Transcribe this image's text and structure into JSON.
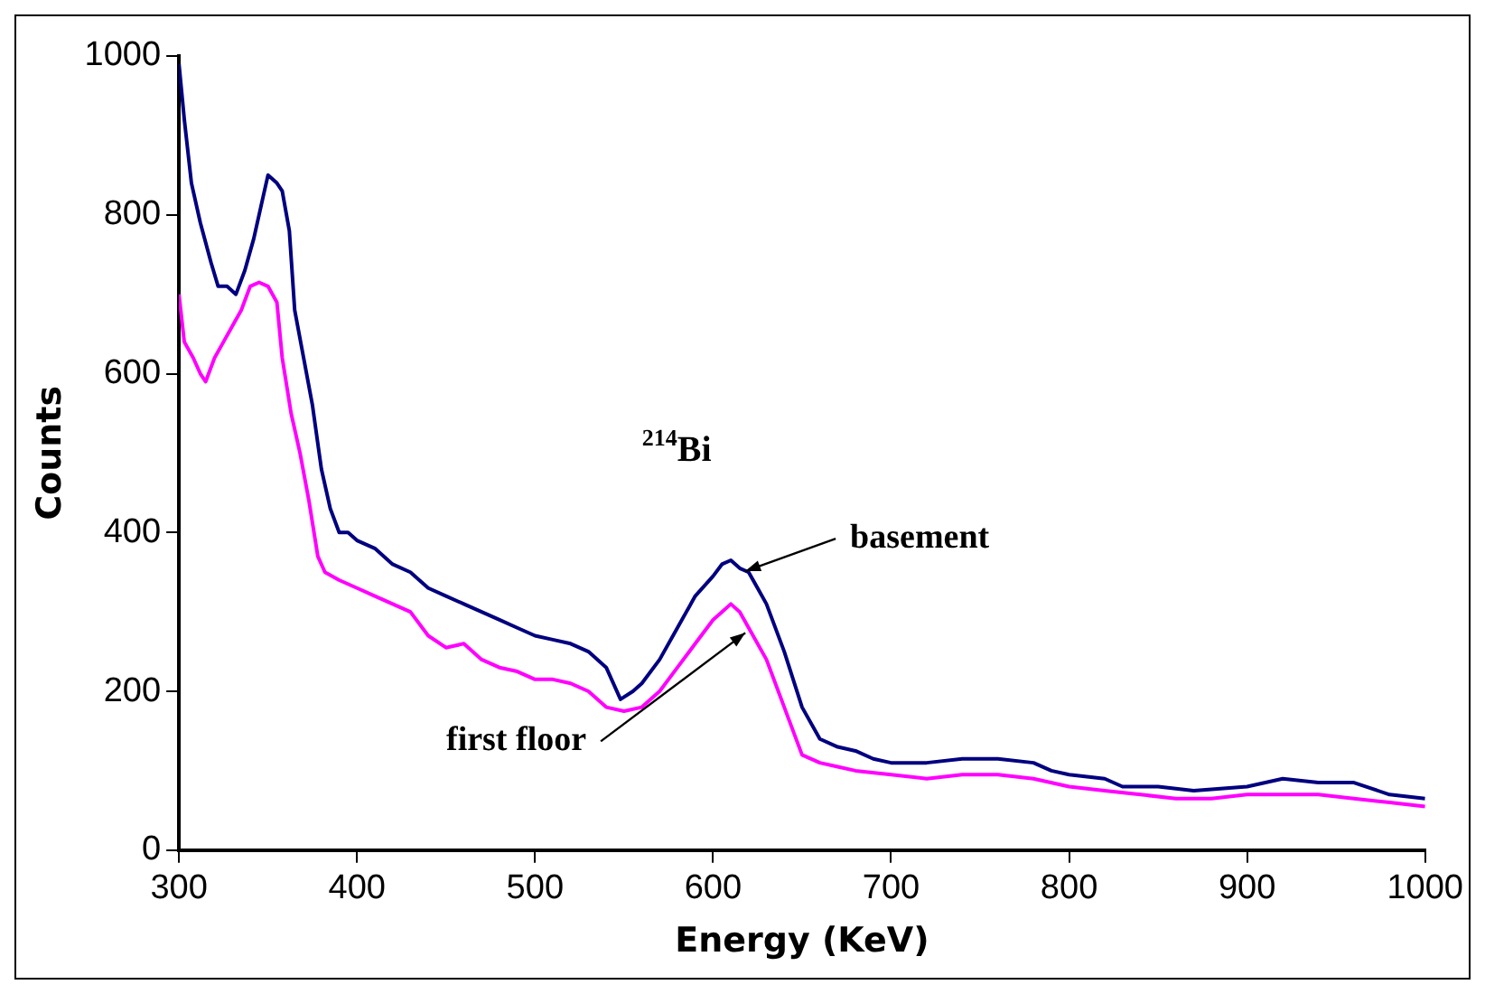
{
  "chart_data": {
    "type": "line",
    "xlabel": "Energy (KeV)",
    "ylabel": "Counts",
    "xlim": [
      300,
      1000
    ],
    "xticks": [
      300,
      400,
      500,
      600,
      700,
      800,
      900,
      1000
    ],
    "ylim": [
      0,
      1000
    ],
    "yticks": [
      0,
      200,
      400,
      600,
      800,
      1000
    ],
    "grid": false,
    "legend": false,
    "marker": "none",
    "line_style": "solid",
    "annotations": [
      "$^{214}$Bi"
    ],
    "series": [
      {
        "name": "basement",
        "color": "#000080",
        "x": [
          300,
          303,
          307,
          312,
          318,
          322,
          327,
          332,
          337,
          342,
          347,
          350,
          355,
          358,
          362,
          365,
          370,
          375,
          380,
          385,
          390,
          395,
          400,
          410,
          420,
          430,
          440,
          450,
          460,
          470,
          480,
          490,
          500,
          510,
          520,
          530,
          540,
          548,
          555,
          560,
          570,
          580,
          590,
          600,
          605,
          610,
          615,
          620,
          625,
          630,
          640,
          650,
          660,
          670,
          680,
          690,
          700,
          720,
          740,
          760,
          780,
          790,
          800,
          820,
          830,
          850,
          870,
          900,
          920,
          940,
          960,
          980,
          1000
        ],
        "values": [
          990,
          920,
          840,
          790,
          740,
          710,
          710,
          700,
          730,
          770,
          820,
          850,
          840,
          830,
          780,
          680,
          620,
          560,
          480,
          430,
          400,
          400,
          390,
          380,
          360,
          350,
          330,
          320,
          310,
          300,
          290,
          280,
          270,
          265,
          260,
          250,
          230,
          190,
          200,
          210,
          240,
          280,
          320,
          345,
          360,
          365,
          355,
          350,
          330,
          310,
          250,
          180,
          140,
          130,
          125,
          115,
          110,
          110,
          115,
          115,
          110,
          100,
          95,
          90,
          80,
          80,
          75,
          80,
          90,
          85,
          85,
          70,
          65
        ]
      },
      {
        "name": "first floor",
        "color": "#ff00ff",
        "x": [
          300,
          303,
          308,
          312,
          315,
          320,
          325,
          330,
          335,
          340,
          345,
          350,
          355,
          358,
          363,
          368,
          373,
          378,
          382,
          390,
          400,
          410,
          420,
          430,
          440,
          450,
          460,
          470,
          480,
          490,
          500,
          510,
          520,
          530,
          540,
          550,
          560,
          570,
          580,
          590,
          600,
          605,
          610,
          615,
          620,
          630,
          640,
          650,
          660,
          670,
          680,
          700,
          720,
          740,
          760,
          780,
          800,
          820,
          840,
          860,
          880,
          900,
          920,
          940,
          960,
          980,
          1000
        ],
        "values": [
          700,
          640,
          620,
          600,
          590,
          620,
          640,
          660,
          680,
          710,
          715,
          710,
          690,
          620,
          550,
          500,
          440,
          370,
          350,
          340,
          330,
          320,
          310,
          300,
          270,
          255,
          260,
          240,
          230,
          225,
          215,
          215,
          210,
          200,
          180,
          175,
          180,
          200,
          230,
          260,
          290,
          300,
          310,
          300,
          280,
          240,
          180,
          120,
          110,
          105,
          100,
          95,
          90,
          95,
          95,
          90,
          80,
          75,
          70,
          65,
          65,
          70,
          70,
          70,
          65,
          60,
          55
        ]
      }
    ]
  }
}
